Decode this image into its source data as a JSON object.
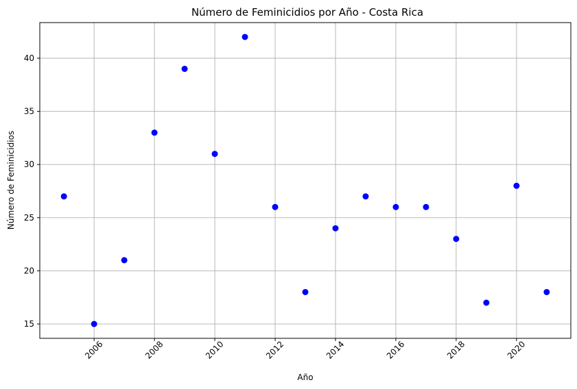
{
  "chart_data": {
    "type": "scatter",
    "title": "Número de Feminicidios por Año - Costa Rica",
    "xlabel": "Año",
    "ylabel": "Número de Feminicidios",
    "x": [
      2005,
      2006,
      2007,
      2008,
      2009,
      2010,
      2011,
      2012,
      2013,
      2014,
      2015,
      2016,
      2017,
      2018,
      2019,
      2020,
      2021
    ],
    "y": [
      27,
      15,
      21,
      33,
      39,
      31,
      42,
      26,
      18,
      24,
      27,
      26,
      26,
      23,
      17,
      28,
      18
    ],
    "xlim": [
      2004.2,
      2021.8
    ],
    "ylim": [
      13.65,
      43.35
    ],
    "xticks": [
      2006,
      2008,
      2010,
      2012,
      2014,
      2016,
      2018,
      2020
    ],
    "xtick_labels": [
      "2006",
      "2008",
      "2010",
      "2012",
      "2014",
      "2016",
      "2018",
      "2020"
    ],
    "yticks": [
      15,
      20,
      25,
      30,
      35,
      40
    ],
    "ytick_labels": [
      "15",
      "20",
      "25",
      "30",
      "35",
      "40"
    ],
    "xtick_rotation": 45,
    "grid": true,
    "color": "#0000ff"
  }
}
